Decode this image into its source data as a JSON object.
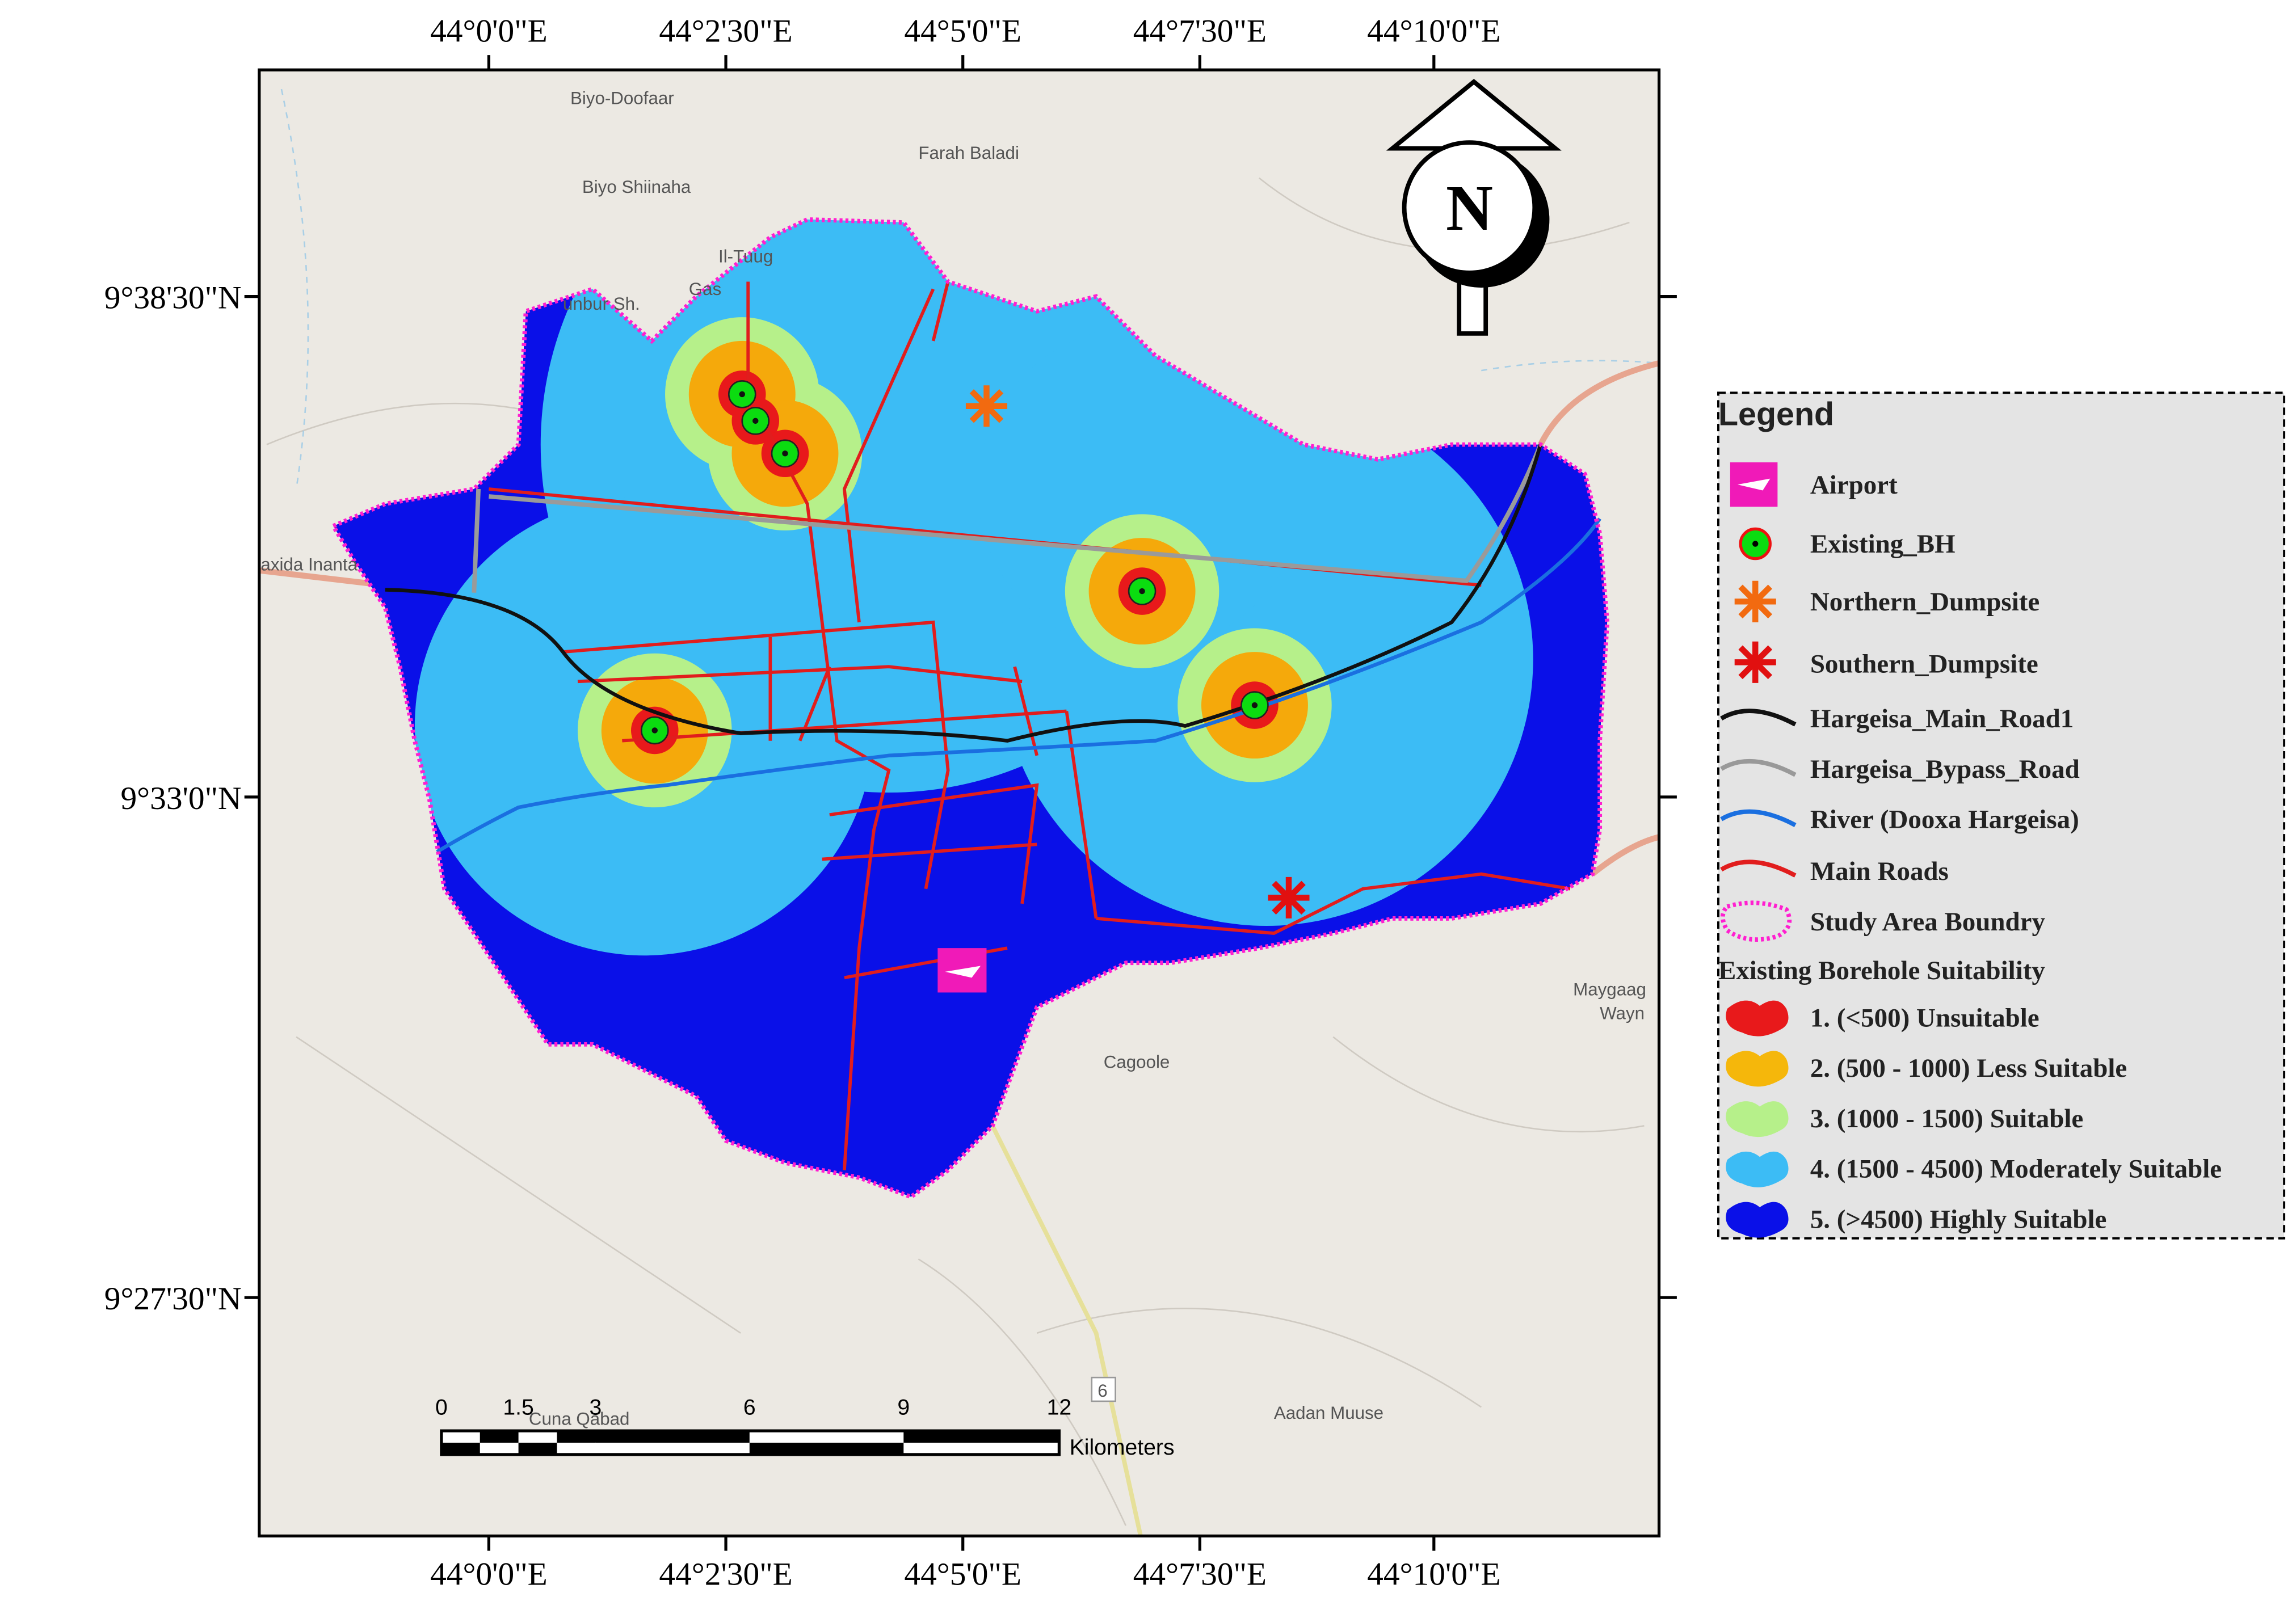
{
  "axes": {
    "lon": [
      "44°0'0\"E",
      "44°2'30\"E",
      "44°5'0\"E",
      "44°7'30\"E",
      "44°10'0\"E"
    ],
    "lat": [
      "9°38'30\"N",
      "9°33'0\"N",
      "9°27'30\"N"
    ]
  },
  "places": [
    "Biyo-Doofaar",
    "Farah Baladi",
    "Biyo Shiinaha",
    "Il-Tuug",
    "Gas",
    "unbur Sh.",
    "axida Inanta",
    "Maygaag",
    "Wayn",
    "Cagoole",
    "Aadan Muuse",
    "Cuna Qabad",
    "6"
  ],
  "north": "N",
  "scale": {
    "ticks": [
      "0",
      "1.5",
      "3",
      "6",
      "9",
      "12"
    ],
    "unit": "Kilometers"
  },
  "legend": {
    "title": "Legend",
    "items": [
      "Airport",
      "Existing_BH",
      "Northern_Dumpsite",
      "Southern_Dumpsite",
      "Hargeisa_Main_Road1",
      "Hargeisa_Bypass_Road",
      "River (Dooxa Hargeisa)",
      "Main Roads",
      "Study Area Boundry"
    ],
    "suitability_title": "Existing Borehole Suitability",
    "classes": [
      "1. (<500) Unsuitable",
      "2. (500 - 1000) Less Suitable",
      "3. (1000 - 1500) Suitable",
      "4. (1500 - 4500) Moderately Suitable",
      "5. (>4500) Highly Suitable"
    ]
  }
}
